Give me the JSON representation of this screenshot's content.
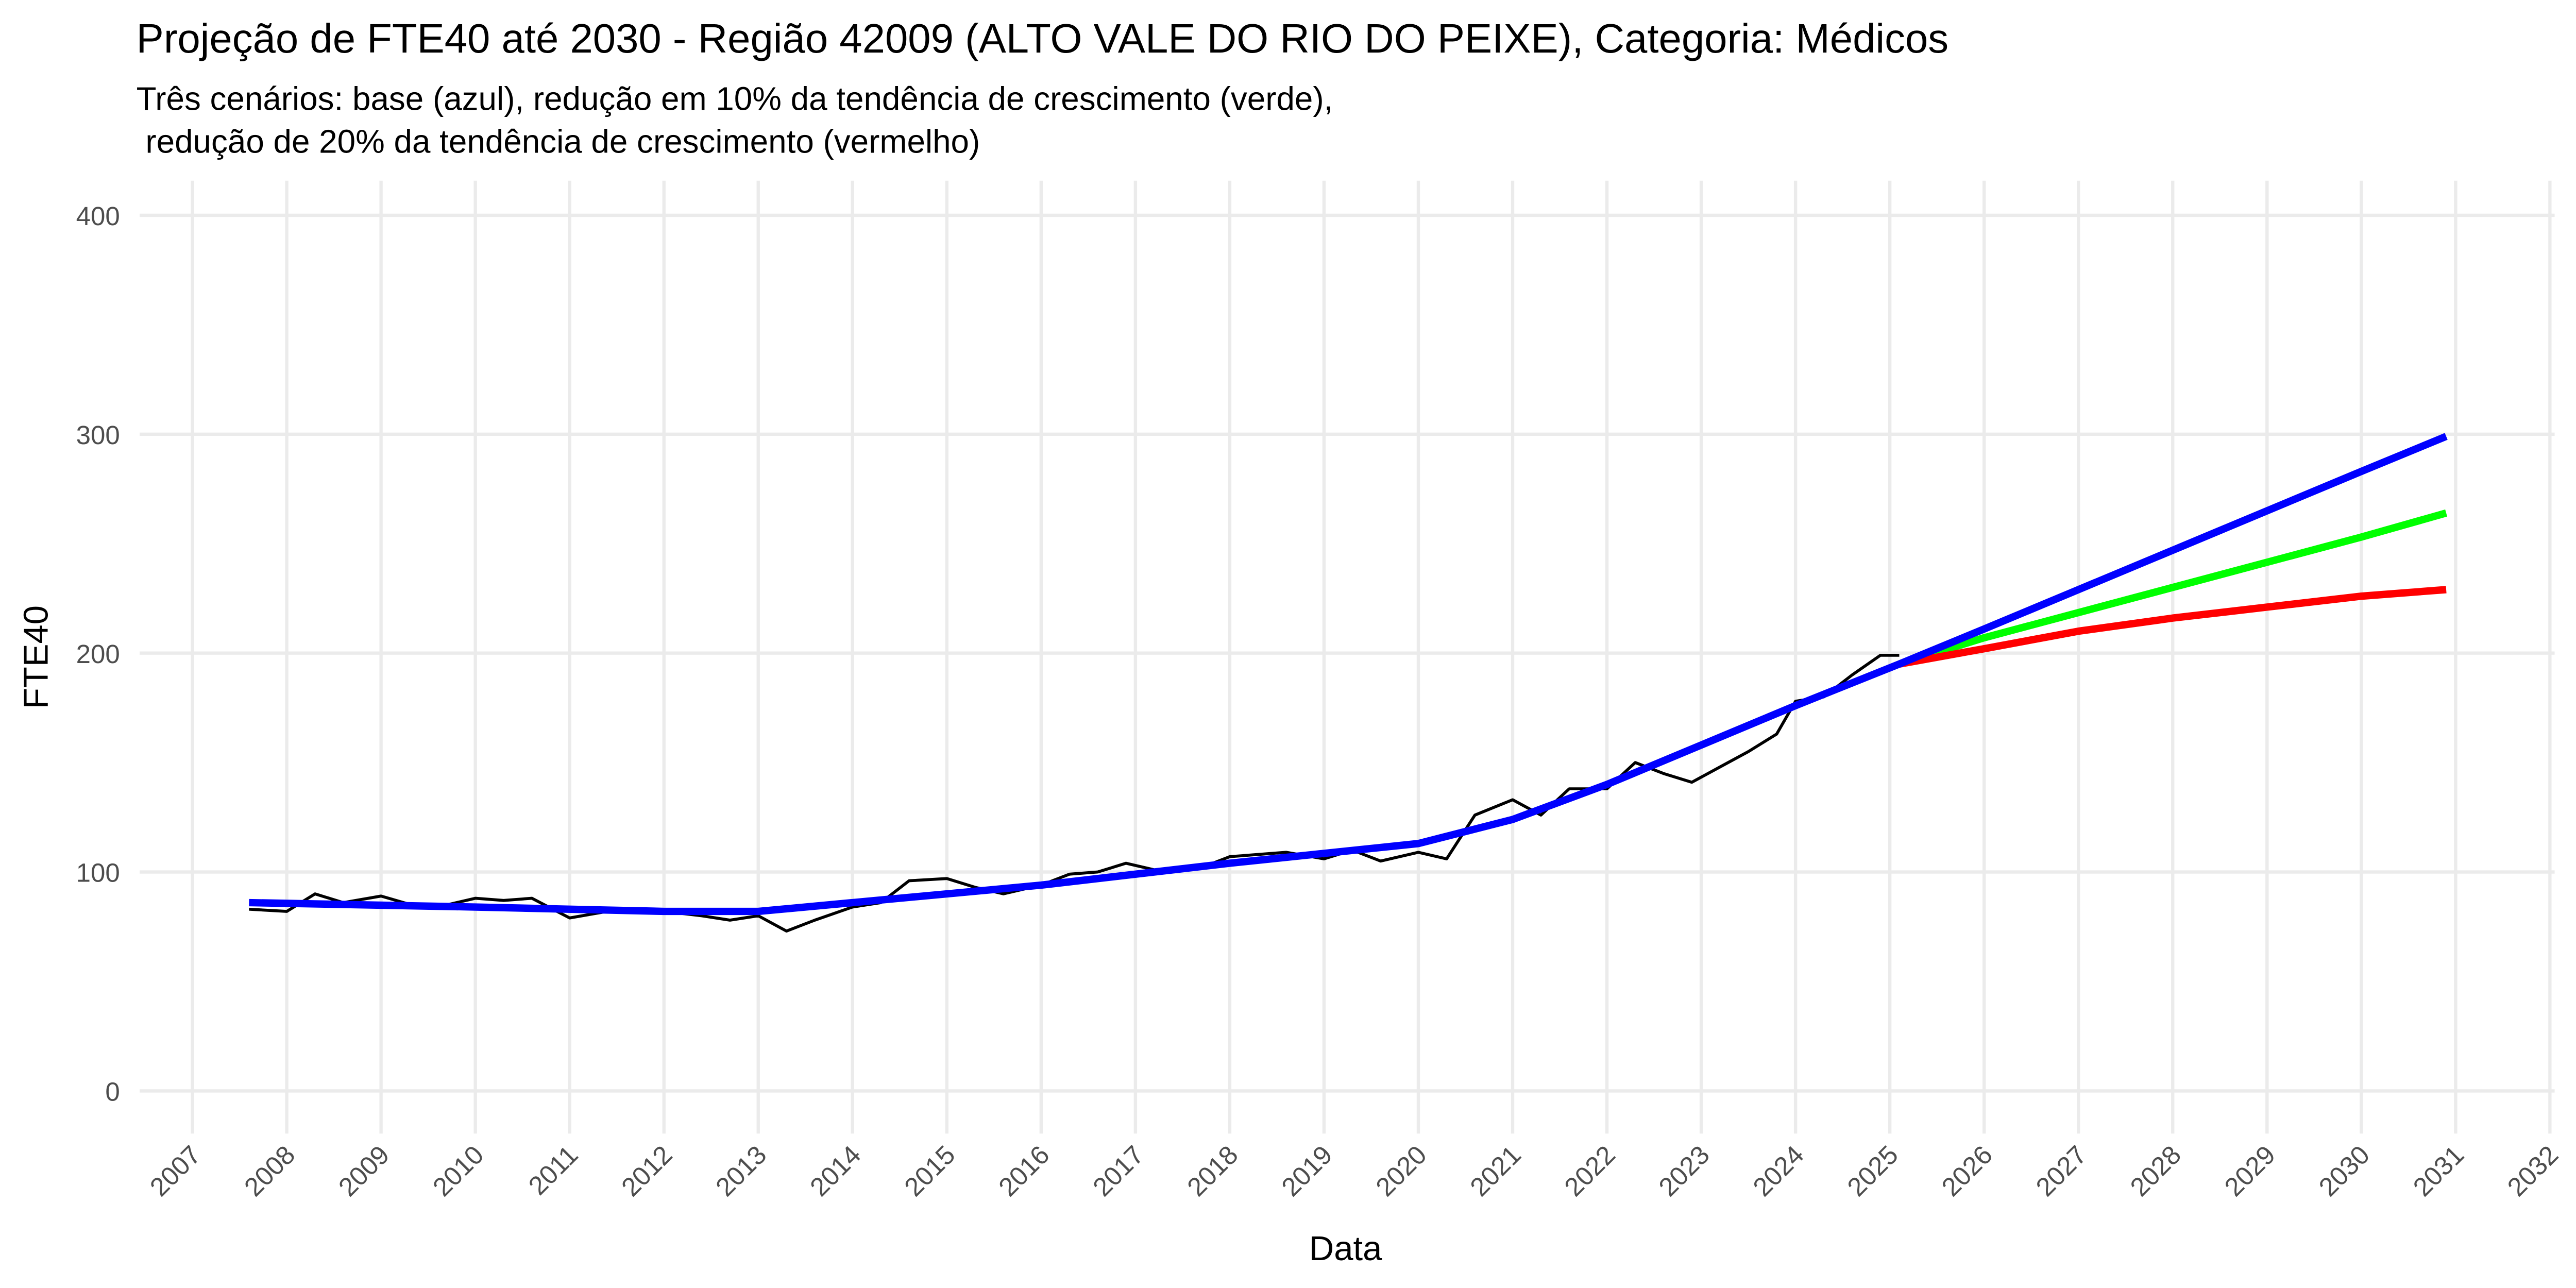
{
  "chart_data": {
    "type": "line",
    "title": "Projeção de FTE40 até 2030 - Região 42009 (ALTO VALE DO RIO DO PEIXE), Categoria: Médicos",
    "subtitle": [
      "Três cenários: base (azul), redução em 10% da tendência de crescimento (verde),",
      " redução de 20% da tendência de crescimento (vermelho)"
    ],
    "x_label": "Data",
    "y_label": "FTE40",
    "xlim": [
      2006.44,
      2032.05
    ],
    "ylim": [
      -19.5,
      415.8
    ],
    "xticks": [
      2007,
      2008,
      2009,
      2010,
      2011,
      2012,
      2013,
      2014,
      2015,
      2016,
      2017,
      2018,
      2019,
      2020,
      2021,
      2022,
      2023,
      2024,
      2025,
      2026,
      2027,
      2028,
      2029,
      2030,
      2031,
      2032
    ],
    "yticks": [
      0,
      100,
      200,
      300,
      400
    ],
    "grid": true,
    "series": [
      {
        "color": "#000000",
        "width": 1.8,
        "x": [
          2007.6,
          2008,
          2008.3,
          2008.6,
          2009,
          2009.4,
          2009.7,
          2010,
          2010.3,
          2010.6,
          2011,
          2011.4,
          2011.7,
          2012,
          2012.4,
          2012.7,
          2013,
          2013.3,
          2013.6,
          2014,
          2014.3,
          2014.6,
          2015,
          2015.3,
          2015.6,
          2016,
          2016.3,
          2016.6,
          2016.9,
          2017.3,
          2017.7,
          2018,
          2018.3,
          2018.6,
          2019,
          2019.3,
          2019.6,
          2020,
          2020.3,
          2020.6,
          2021,
          2021.3,
          2021.6,
          2022,
          2022.3,
          2022.6,
          2022.9,
          2023.2,
          2023.5,
          2023.8,
          2024,
          2024.3,
          2024.6,
          2024.9,
          2025.1
        ],
        "values": [
          83,
          82,
          90,
          86,
          89,
          84,
          85,
          88,
          87,
          88,
          79,
          82,
          83,
          82,
          80,
          78,
          80,
          73,
          78,
          84,
          86,
          96,
          97,
          93,
          90,
          94,
          99,
          100,
          104,
          100,
          102,
          107,
          108,
          109,
          106,
          110,
          105,
          109,
          106,
          126,
          133,
          126,
          138,
          138,
          150,
          145,
          141,
          148,
          155,
          163,
          178,
          180,
          190,
          199,
          199
        ]
      },
      {
        "color": "#00ff00",
        "width": 4.5,
        "x": [
          2025.1,
          2026,
          2028,
          2030,
          2030.9
        ],
        "values": [
          195,
          207,
          230,
          253,
          264
        ]
      },
      {
        "color": "#ff0000",
        "width": 4.5,
        "x": [
          2025.1,
          2026,
          2027,
          2028,
          2029,
          2030,
          2030.9
        ],
        "values": [
          195,
          202,
          210,
          216,
          221,
          226,
          229
        ]
      },
      {
        "color": "#0000ff",
        "width": 4.5,
        "x": [
          2007.6,
          2010,
          2012,
          2013,
          2014,
          2016,
          2018,
          2020,
          2021,
          2022,
          2023,
          2024,
          2025.1,
          2026,
          2028,
          2030,
          2030.9
        ],
        "values": [
          86,
          84,
          82,
          82,
          86,
          94,
          104,
          113,
          124,
          140,
          158,
          176,
          195,
          211,
          247,
          283,
          299
        ]
      }
    ]
  }
}
